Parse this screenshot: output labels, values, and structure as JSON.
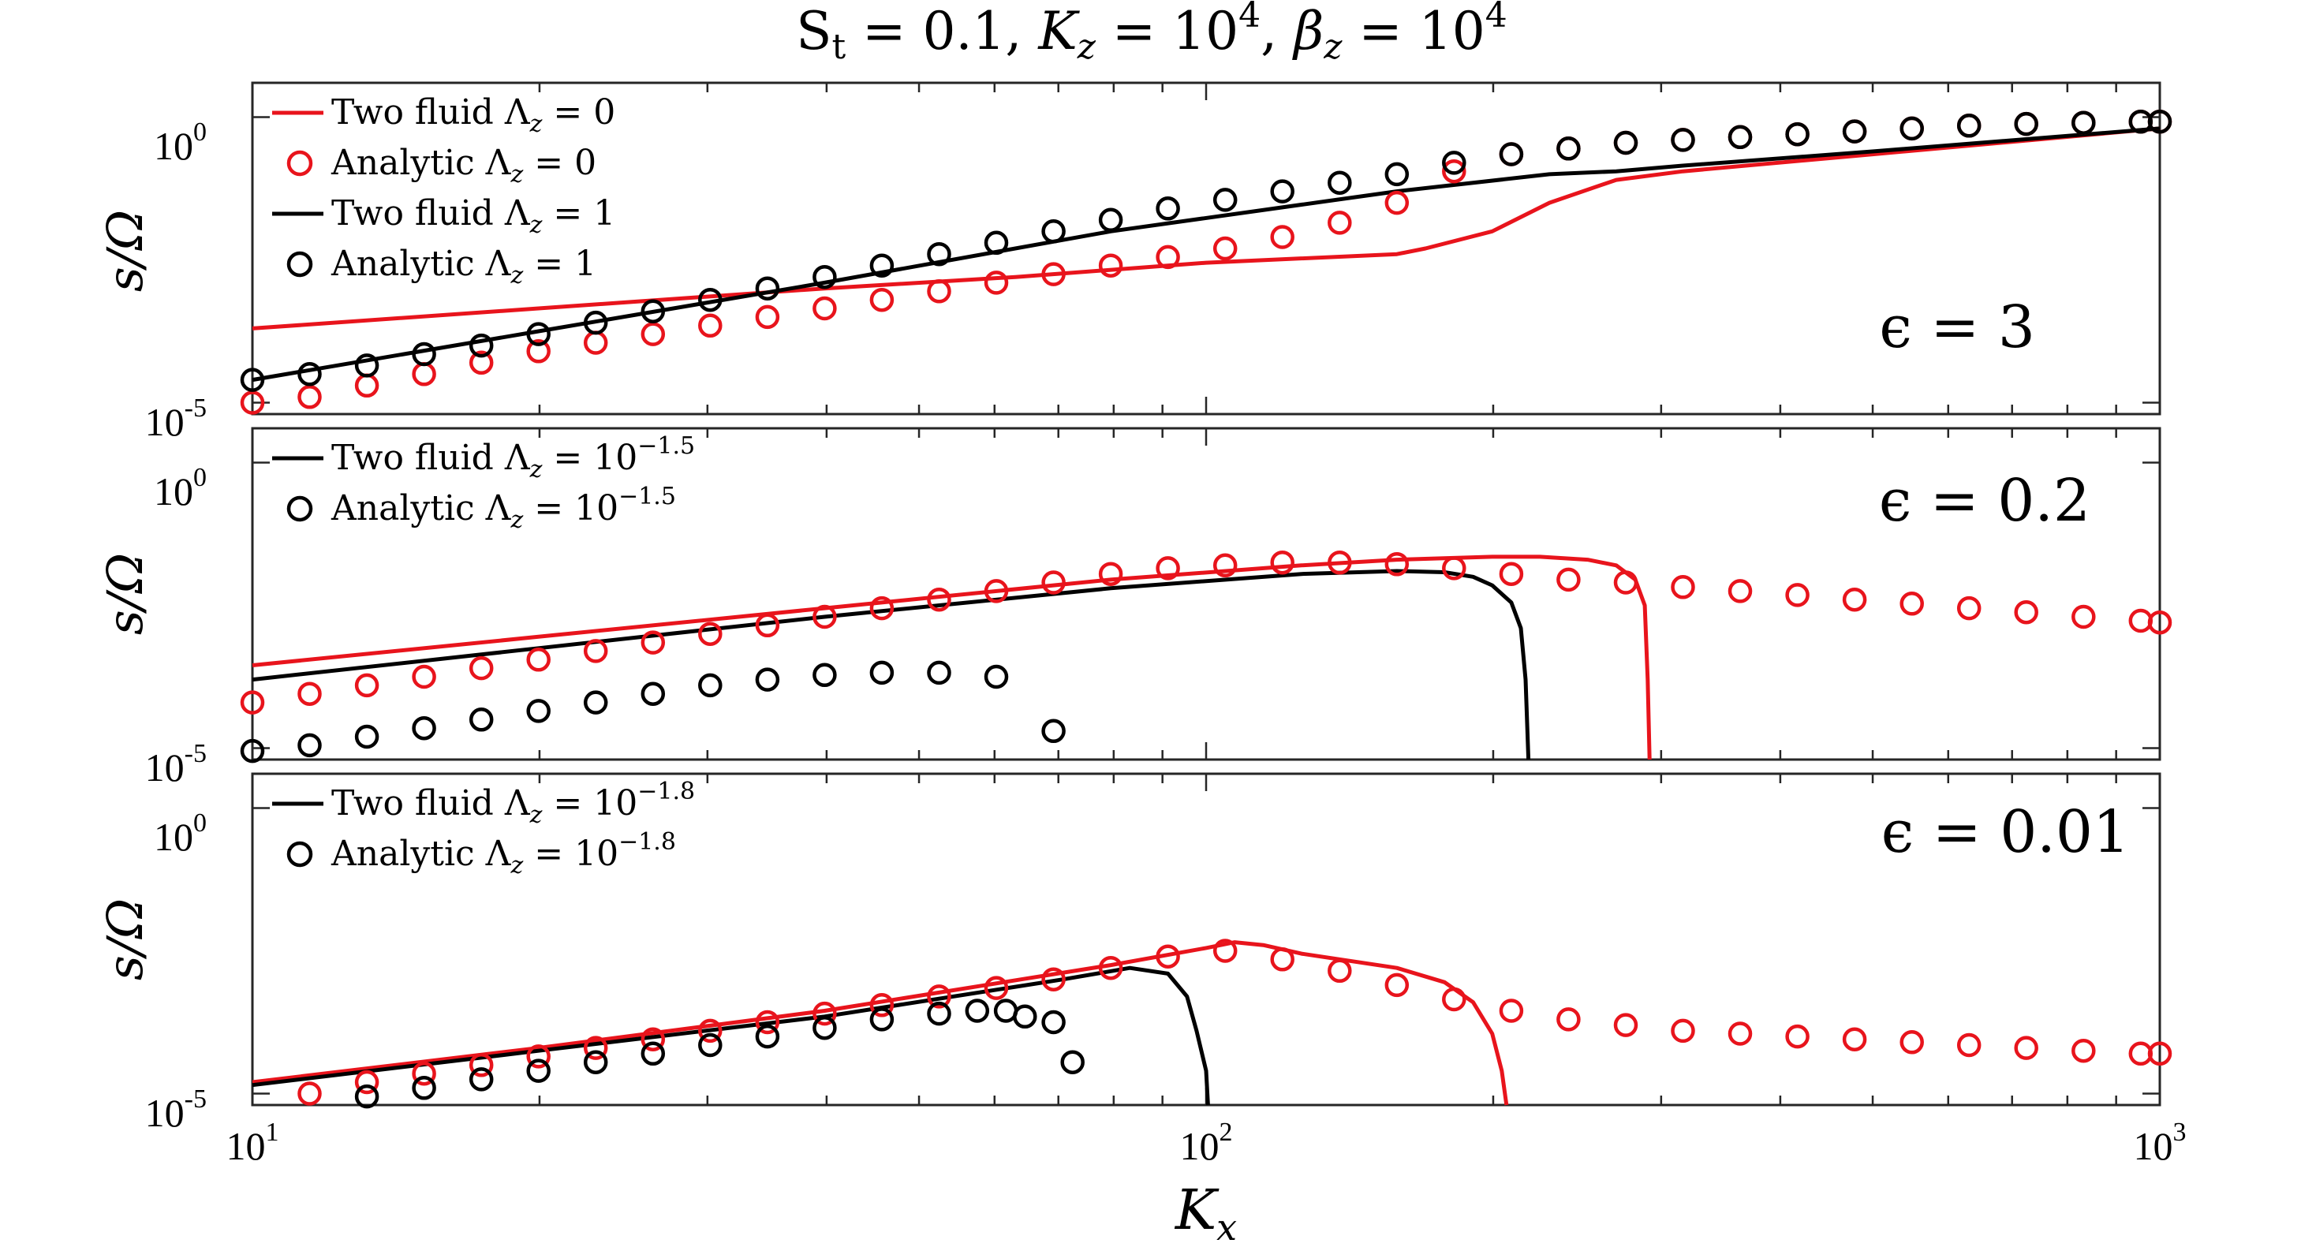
{
  "figure_title": {
    "main": "S",
    "sub": "t",
    "rest": " = 0.1, ",
    "kz": "K",
    "kz_sub": "z",
    "kz_eq": " = 10",
    "kz_exp": "4",
    "bsep": ", ",
    "bz": "β",
    "bz_sub": "z",
    "bz_eq": " = 10",
    "bz_exp": "4"
  },
  "xlabel": {
    "base": "K",
    "sub": "x"
  },
  "ylabel": "s/Ω",
  "x_ticks": [
    {
      "base": "10",
      "exp": "1"
    },
    {
      "base": "10",
      "exp": "2"
    },
    {
      "base": "10",
      "exp": "3"
    }
  ],
  "y_ticks": [
    {
      "base": "10",
      "exp": "0"
    },
    {
      "base": "10",
      "exp": "-5"
    }
  ],
  "colors": {
    "red": "#e8141c",
    "black": "#000000"
  },
  "chart_data": [
    {
      "type": "line",
      "panel_label": "ϵ = 3",
      "xscale": "log",
      "yscale": "log",
      "xlim": [
        10,
        1000
      ],
      "ylim_exp": [
        -5.2,
        0.6
      ],
      "legend": [
        {
          "kind": "line",
          "color": "red",
          "text": "Two fluid Λ",
          "sub": "z",
          "eq": " = 0",
          "exp": ""
        },
        {
          "kind": "marker",
          "color": "red",
          "text": "Analytic Λ",
          "sub": "z",
          "eq": " = 0",
          "exp": ""
        },
        {
          "kind": "line",
          "color": "black",
          "text": "Two fluid Λ",
          "sub": "z",
          "eq": " = 1",
          "exp": ""
        },
        {
          "kind": "marker",
          "color": "black",
          "text": "Analytic Λ",
          "sub": "z",
          "eq": " = 1",
          "exp": ""
        }
      ],
      "series": [
        {
          "kind": "line",
          "color": "red",
          "logx": [
            1.0,
            1.3,
            1.6,
            1.8,
            2.0,
            2.2,
            2.23,
            2.3,
            2.36,
            2.43,
            2.5,
            2.7,
            3.0
          ],
          "logy": [
            -3.7,
            -3.35,
            -3.0,
            -2.8,
            -2.55,
            -2.4,
            -2.3,
            -2.0,
            -1.5,
            -1.1,
            -0.95,
            -0.65,
            -0.2
          ]
        },
        {
          "kind": "line",
          "color": "black",
          "logx": [
            1.0,
            1.3,
            1.6,
            1.9,
            2.2,
            2.36,
            2.43,
            2.5,
            2.7,
            3.0
          ],
          "logy": [
            -4.6,
            -3.75,
            -2.9,
            -2.0,
            -1.3,
            -1.0,
            -0.95,
            -0.85,
            -0.6,
            -0.2
          ]
        },
        {
          "kind": "marker",
          "color": "red",
          "logx": [
            1.0,
            1.06,
            1.12,
            1.18,
            1.24,
            1.3,
            1.36,
            1.42,
            1.48,
            1.54,
            1.6,
            1.66,
            1.72,
            1.78,
            1.84,
            1.9,
            1.96,
            2.02,
            2.08,
            2.14,
            2.2,
            2.26,
            2.32,
            2.38,
            2.44,
            2.5,
            2.56,
            2.62,
            2.68,
            2.74,
            2.8,
            2.86,
            2.92,
            2.98,
            3.0
          ],
          "logy": [
            -5.0,
            -4.9,
            -4.7,
            -4.5,
            -4.3,
            -4.1,
            -3.95,
            -3.8,
            -3.65,
            -3.5,
            -3.35,
            -3.2,
            -3.05,
            -2.9,
            -2.75,
            -2.6,
            -2.45,
            -2.3,
            -2.1,
            -1.85,
            -1.5,
            -0.95,
            -0.65,
            -0.55,
            -0.45,
            -0.4,
            -0.35,
            -0.3,
            -0.25,
            -0.2,
            -0.15,
            -0.12,
            -0.1,
            -0.08,
            -0.08
          ]
        },
        {
          "kind": "marker",
          "color": "black",
          "logx": [
            1.0,
            1.06,
            1.12,
            1.18,
            1.24,
            1.3,
            1.36,
            1.42,
            1.48,
            1.54,
            1.6,
            1.66,
            1.72,
            1.78,
            1.84,
            1.9,
            1.96,
            2.02,
            2.08,
            2.14,
            2.2,
            2.26,
            2.32,
            2.38,
            2.44,
            2.5,
            2.56,
            2.62,
            2.68,
            2.74,
            2.8,
            2.86,
            2.92,
            2.98,
            3.0
          ],
          "logy": [
            -4.6,
            -4.5,
            -4.35,
            -4.15,
            -4.0,
            -3.8,
            -3.6,
            -3.4,
            -3.2,
            -3.0,
            -2.8,
            -2.6,
            -2.4,
            -2.2,
            -2.0,
            -1.8,
            -1.6,
            -1.45,
            -1.3,
            -1.15,
            -1.0,
            -0.8,
            -0.65,
            -0.55,
            -0.45,
            -0.4,
            -0.35,
            -0.3,
            -0.25,
            -0.2,
            -0.15,
            -0.12,
            -0.1,
            -0.08,
            -0.08
          ]
        }
      ]
    },
    {
      "type": "line",
      "panel_label": "ϵ = 0.2",
      "xscale": "log",
      "yscale": "log",
      "xlim": [
        10,
        1000
      ],
      "ylim_exp": [
        -5.2,
        0.6
      ],
      "legend": [
        {
          "kind": "line",
          "color": "black",
          "text": "Two fluid Λ",
          "sub": "z",
          "eq": " = 10",
          "exp": "−1.5"
        },
        {
          "kind": "marker",
          "color": "black",
          "text": "Analytic Λ",
          "sub": "z",
          "eq": " = 10",
          "exp": "−1.5"
        }
      ],
      "series": [
        {
          "kind": "line",
          "color": "red",
          "logx": [
            1.0,
            1.3,
            1.6,
            1.9,
            2.1,
            2.2,
            2.3,
            2.35,
            2.4,
            2.43,
            2.45,
            2.46,
            2.463,
            2.465
          ],
          "logy": [
            -3.55,
            -3.05,
            -2.55,
            -2.05,
            -1.8,
            -1.7,
            -1.65,
            -1.65,
            -1.7,
            -1.8,
            -2.05,
            -2.5,
            -3.8,
            -5.2
          ]
        },
        {
          "kind": "line",
          "color": "black",
          "logx": [
            1.0,
            1.3,
            1.6,
            1.9,
            2.1,
            2.2,
            2.25,
            2.28,
            2.3,
            2.32,
            2.33,
            2.335,
            2.338
          ],
          "logy": [
            -3.8,
            -3.25,
            -2.7,
            -2.2,
            -1.95,
            -1.9,
            -1.92,
            -2.0,
            -2.15,
            -2.45,
            -2.9,
            -3.8,
            -5.2
          ]
        },
        {
          "kind": "marker",
          "color": "red",
          "logx": [
            1.0,
            1.06,
            1.12,
            1.18,
            1.24,
            1.3,
            1.36,
            1.42,
            1.48,
            1.54,
            1.6,
            1.66,
            1.72,
            1.78,
            1.84,
            1.9,
            1.96,
            2.02,
            2.08,
            2.14,
            2.2,
            2.26,
            2.32,
            2.38,
            2.44,
            2.5,
            2.56,
            2.62,
            2.68,
            2.74,
            2.8,
            2.86,
            2.92,
            2.98,
            3.0
          ],
          "logy": [
            -4.2,
            -4.05,
            -3.9,
            -3.75,
            -3.6,
            -3.45,
            -3.3,
            -3.15,
            -3.0,
            -2.85,
            -2.7,
            -2.55,
            -2.4,
            -2.25,
            -2.1,
            -1.95,
            -1.85,
            -1.8,
            -1.75,
            -1.75,
            -1.78,
            -1.85,
            -1.95,
            -2.05,
            -2.1,
            -2.18,
            -2.25,
            -2.32,
            -2.4,
            -2.47,
            -2.55,
            -2.62,
            -2.7,
            -2.77,
            -2.8
          ]
        },
        {
          "kind": "marker",
          "color": "black",
          "logx": [
            1.0,
            1.06,
            1.12,
            1.18,
            1.24,
            1.3,
            1.36,
            1.42,
            1.48,
            1.54,
            1.6,
            1.66,
            1.72,
            1.78,
            1.84
          ],
          "logy": [
            -5.05,
            -4.95,
            -4.8,
            -4.65,
            -4.5,
            -4.35,
            -4.2,
            -4.05,
            -3.9,
            -3.8,
            -3.72,
            -3.68,
            -3.68,
            -3.75,
            -4.7
          ]
        }
      ]
    },
    {
      "type": "line",
      "panel_label": "ϵ = 0.01",
      "xscale": "log",
      "yscale": "log",
      "xlim": [
        10,
        1000
      ],
      "ylim_exp": [
        -5.2,
        0.6
      ],
      "legend": [
        {
          "kind": "line",
          "color": "black",
          "text": "Two fluid Λ",
          "sub": "z",
          "eq": " = 10",
          "exp": "−1.8"
        },
        {
          "kind": "marker",
          "color": "black",
          "text": "Analytic Λ",
          "sub": "z",
          "eq": " = 10",
          "exp": "−1.8"
        }
      ],
      "series": [
        {
          "kind": "line",
          "color": "red",
          "logx": [
            1.0,
            1.3,
            1.6,
            1.9,
            2.0,
            2.03,
            2.06,
            2.1,
            2.2,
            2.25,
            2.28,
            2.3,
            2.31,
            2.315
          ],
          "logy": [
            -4.8,
            -4.2,
            -3.55,
            -2.75,
            -2.45,
            -2.35,
            -2.4,
            -2.55,
            -2.8,
            -3.05,
            -3.4,
            -3.95,
            -4.6,
            -5.2
          ]
        },
        {
          "kind": "line",
          "color": "black",
          "logx": [
            1.0,
            1.3,
            1.6,
            1.85,
            1.92,
            1.96,
            1.98,
            1.99,
            2.0,
            2.002
          ],
          "logy": [
            -4.85,
            -4.25,
            -3.65,
            -3.0,
            -2.8,
            -2.9,
            -3.3,
            -3.9,
            -4.6,
            -5.2
          ]
        },
        {
          "kind": "marker",
          "color": "red",
          "logx": [
            1.06,
            1.12,
            1.18,
            1.24,
            1.3,
            1.36,
            1.42,
            1.48,
            1.54,
            1.6,
            1.66,
            1.72,
            1.78,
            1.84,
            1.9,
            1.96,
            2.02,
            2.08,
            2.14,
            2.2,
            2.26,
            2.32,
            2.38,
            2.44,
            2.5,
            2.56,
            2.62,
            2.68,
            2.74,
            2.8,
            2.86,
            2.92,
            2.98,
            3.0
          ],
          "logy": [
            -5.0,
            -4.8,
            -4.65,
            -4.5,
            -4.35,
            -4.2,
            -4.05,
            -3.9,
            -3.75,
            -3.6,
            -3.45,
            -3.3,
            -3.15,
            -3.0,
            -2.8,
            -2.6,
            -2.5,
            -2.65,
            -2.85,
            -3.1,
            -3.35,
            -3.55,
            -3.7,
            -3.8,
            -3.9,
            -3.95,
            -4.0,
            -4.05,
            -4.1,
            -4.15,
            -4.2,
            -4.25,
            -4.3,
            -4.3
          ]
        },
        {
          "kind": "marker",
          "color": "black",
          "logx": [
            1.12,
            1.18,
            1.24,
            1.3,
            1.36,
            1.42,
            1.48,
            1.54,
            1.6,
            1.66,
            1.72,
            1.76,
            1.79,
            1.81,
            1.84,
            1.86
          ],
          "logy": [
            -5.05,
            -4.9,
            -4.75,
            -4.6,
            -4.45,
            -4.3,
            -4.15,
            -4.0,
            -3.85,
            -3.7,
            -3.6,
            -3.55,
            -3.55,
            -3.65,
            -3.75,
            -4.45
          ]
        }
      ]
    }
  ]
}
